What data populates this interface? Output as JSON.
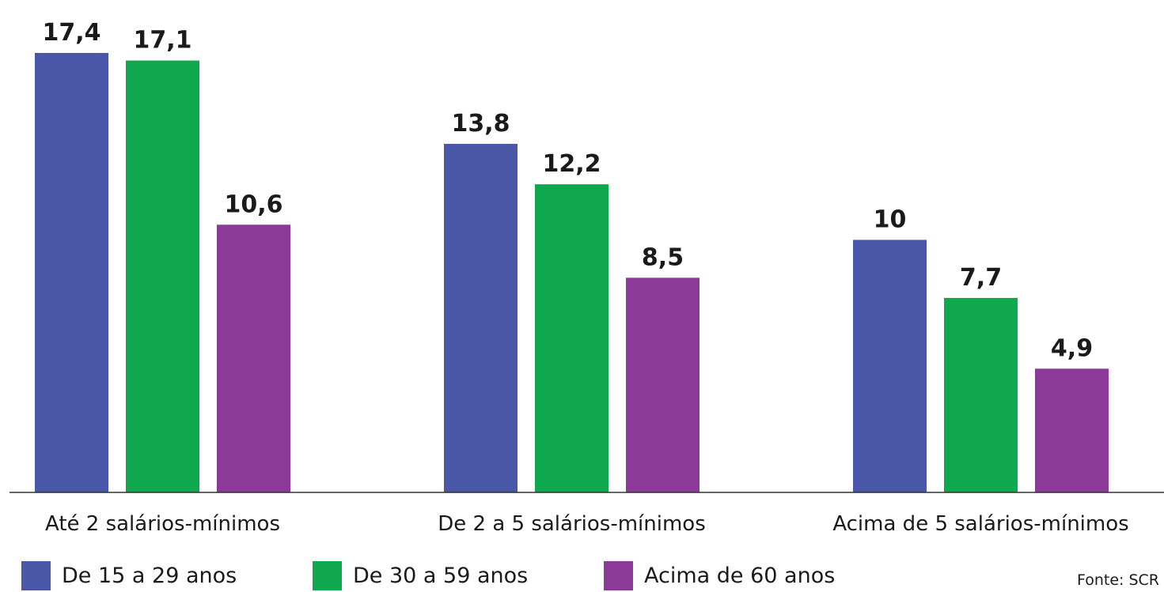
{
  "chart_data": {
    "type": "bar",
    "categories": [
      "Até 2 salários-mínimos",
      "De 2 a 5 salários-mínimos",
      "Acima de 5 salários-mínimos"
    ],
    "series": [
      {
        "name": "De 15 a 29 anos",
        "color": "#4a57a8",
        "values": [
          17.4,
          13.8,
          10
        ],
        "labels": [
          "17,4",
          "13,8",
          "10"
        ]
      },
      {
        "name": "De 30 a 59 anos",
        "color": "#0fa84f",
        "values": [
          17.1,
          12.2,
          7.7
        ],
        "labels": [
          "17,1",
          "12,2",
          "7,7"
        ]
      },
      {
        "name": "Acima de 60 anos",
        "color": "#8b3b97",
        "values": [
          10.6,
          8.5,
          4.9
        ],
        "labels": [
          "10,6",
          "8,5",
          "4,9"
        ]
      }
    ],
    "ylim": [
      0,
      17.4
    ],
    "grid": false,
    "legend_position": "bottom-left",
    "source": "Fonte: SCR"
  }
}
